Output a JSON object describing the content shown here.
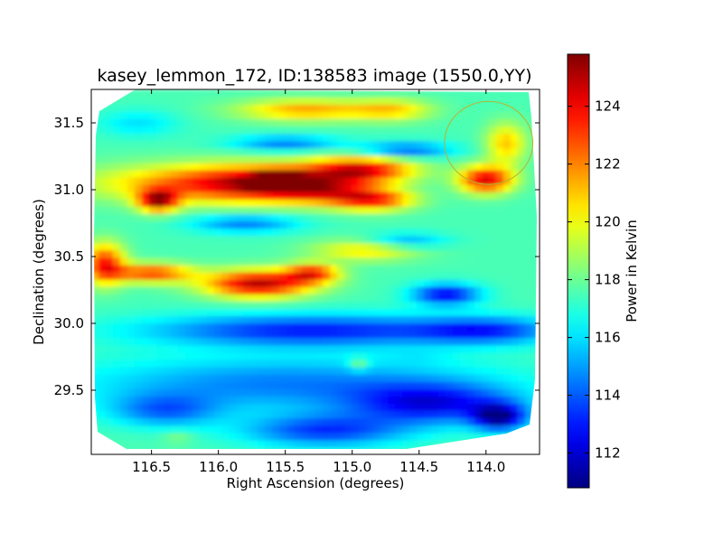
{
  "chart_data": {
    "type": "heatmap",
    "title": "kasey_lemmon_172, ID:138583 image (1550.0,YY)",
    "xlabel": "Right Ascension (degrees)",
    "ylabel": "Declination (degrees)",
    "xlim": [
      116.95,
      113.6
    ],
    "ylim": [
      29.02,
      31.75
    ],
    "x_inverted": true,
    "xticks": [
      116.5,
      116.0,
      115.5,
      115.0,
      114.5,
      114.0
    ],
    "xtick_labels": [
      "116.5",
      "116.0",
      "115.5",
      "115.0",
      "114.5",
      "114.0"
    ],
    "yticks": [
      29.5,
      30.0,
      30.5,
      31.0,
      31.5
    ],
    "ytick_labels": [
      "29.5",
      "30.0",
      "30.5",
      "31.0",
      "31.5"
    ],
    "colorbar": {
      "label": "Power in Kelvin",
      "range": [
        110.8,
        125.8
      ],
      "colormap": "jet",
      "ticks": [
        112,
        114,
        116,
        118,
        120,
        122,
        124
      ],
      "tick_labels": [
        "112",
        "114",
        "116",
        "118",
        "120",
        "122",
        "124"
      ]
    },
    "background_level": 117.5,
    "features": [
      {
        "ra": 116.15,
        "dec": 31.05,
        "ra_w": 0.8,
        "dec_w": 0.14,
        "value": 122.0
      },
      {
        "ra": 115.7,
        "dec": 31.05,
        "ra_w": 0.5,
        "dec_w": 0.14,
        "value": 121.5
      },
      {
        "ra": 116.45,
        "dec": 30.92,
        "ra_w": 0.15,
        "dec_w": 0.08,
        "value": 124.5
      },
      {
        "ra": 115.55,
        "dec": 31.07,
        "ra_w": 0.2,
        "dec_w": 0.07,
        "value": 124.0
      },
      {
        "ra": 114.95,
        "dec": 31.15,
        "ra_w": 0.4,
        "dec_w": 0.1,
        "value": 124.5
      },
      {
        "ra": 114.85,
        "dec": 30.93,
        "ra_w": 0.3,
        "dec_w": 0.08,
        "value": 123.5
      },
      {
        "ra": 115.25,
        "dec": 31.0,
        "ra_w": 0.35,
        "dec_w": 0.1,
        "value": 122.0
      },
      {
        "ra": 115.35,
        "dec": 31.6,
        "ra_w": 0.5,
        "dec_w": 0.08,
        "value": 121.5
      },
      {
        "ra": 114.7,
        "dec": 31.6,
        "ra_w": 0.3,
        "dec_w": 0.08,
        "value": 120.5
      },
      {
        "ra": 114.0,
        "dec": 31.08,
        "ra_w": 0.2,
        "dec_w": 0.1,
        "value": 124.5
      },
      {
        "ra": 113.85,
        "dec": 31.35,
        "ra_w": 0.15,
        "dec_w": 0.15,
        "value": 121.0
      },
      {
        "ra": 116.85,
        "dec": 30.45,
        "ra_w": 0.15,
        "dec_w": 0.15,
        "value": 123.5
      },
      {
        "ra": 116.5,
        "dec": 30.38,
        "ra_w": 0.3,
        "dec_w": 0.07,
        "value": 123.0
      },
      {
        "ra": 115.7,
        "dec": 30.3,
        "ra_w": 0.4,
        "dec_w": 0.1,
        "value": 125.0
      },
      {
        "ra": 115.3,
        "dec": 30.38,
        "ra_w": 0.2,
        "dec_w": 0.07,
        "value": 123.0
      },
      {
        "ra": 114.9,
        "dec": 30.55,
        "ra_w": 0.4,
        "dec_w": 0.08,
        "value": 120.5
      },
      {
        "ra": 115.5,
        "dec": 31.35,
        "ra_w": 0.4,
        "dec_w": 0.06,
        "value": 114.5
      },
      {
        "ra": 114.6,
        "dec": 31.3,
        "ra_w": 0.35,
        "dec_w": 0.06,
        "value": 114.0
      },
      {
        "ra": 115.8,
        "dec": 30.75,
        "ra_w": 0.4,
        "dec_w": 0.07,
        "value": 114.5
      },
      {
        "ra": 116.6,
        "dec": 31.5,
        "ra_w": 0.3,
        "dec_w": 0.1,
        "value": 116.0
      },
      {
        "ra": 114.6,
        "dec": 30.62,
        "ra_w": 0.3,
        "dec_w": 0.06,
        "value": 115.0
      },
      {
        "ra": 114.3,
        "dec": 30.22,
        "ra_w": 0.25,
        "dec_w": 0.08,
        "value": 112.5
      },
      {
        "ra": 115.3,
        "dec": 29.95,
        "ra_w": 1.2,
        "dec_w": 0.12,
        "value": 113.0
      },
      {
        "ra": 114.0,
        "dec": 29.95,
        "ra_w": 0.5,
        "dec_w": 0.1,
        "value": 114.0
      },
      {
        "ra": 115.5,
        "dec": 29.55,
        "ra_w": 1.5,
        "dec_w": 0.2,
        "value": 114.5
      },
      {
        "ra": 114.4,
        "dec": 29.4,
        "ra_w": 0.6,
        "dec_w": 0.15,
        "value": 113.0
      },
      {
        "ra": 113.9,
        "dec": 29.3,
        "ra_w": 0.2,
        "dec_w": 0.1,
        "value": 111.8
      },
      {
        "ra": 115.2,
        "dec": 29.2,
        "ra_w": 0.6,
        "dec_w": 0.12,
        "value": 113.5
      },
      {
        "ra": 116.4,
        "dec": 29.35,
        "ra_w": 0.4,
        "dec_w": 0.12,
        "value": 114.5
      },
      {
        "ra": 114.95,
        "dec": 29.7,
        "ra_w": 0.08,
        "dec_w": 0.05,
        "value": 119.5
      },
      {
        "ra": 116.3,
        "dec": 29.15,
        "ra_w": 0.12,
        "dec_w": 0.05,
        "value": 118.5
      },
      {
        "ra": 114.5,
        "dec": 29.75,
        "ra_w": 0.25,
        "dec_w": 0.06,
        "value": 117.0
      }
    ],
    "annotations": [
      {
        "type": "circle",
        "ra": 113.98,
        "dec": 31.35,
        "ra_radius": 0.33,
        "dec_radius": 0.31,
        "color": "#b5b52f"
      }
    ]
  }
}
